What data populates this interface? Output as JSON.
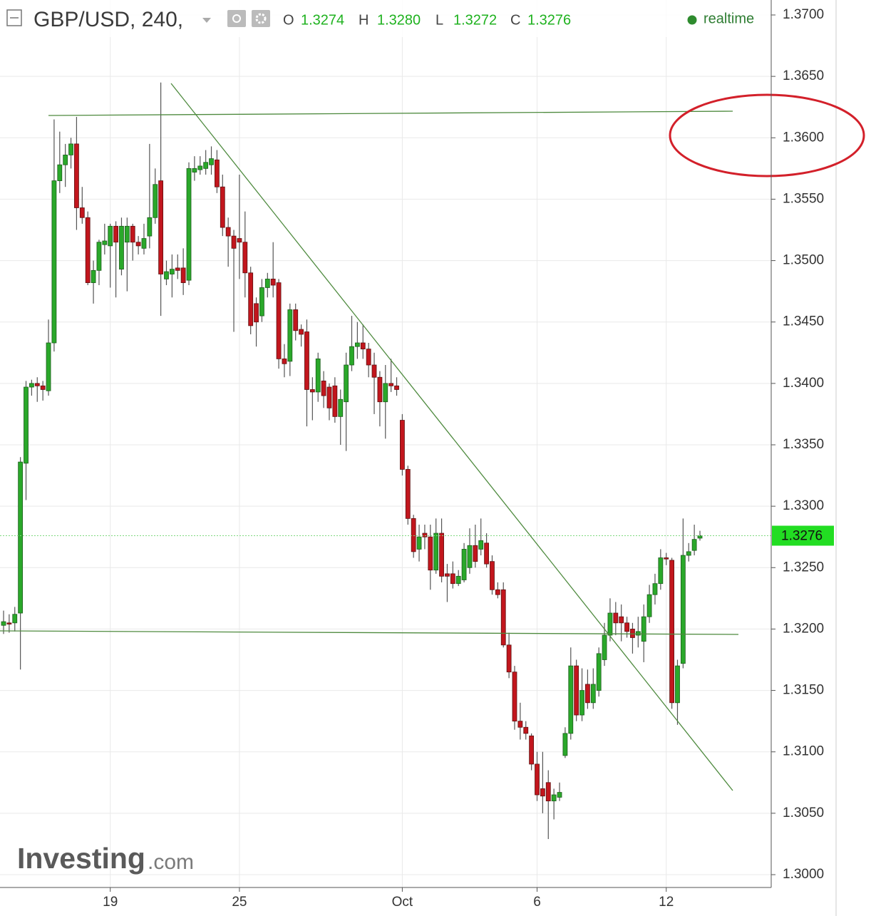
{
  "chart_data": {
    "type": "candlestick",
    "title": "GBP/USD, 240,",
    "ohlc": [
      {
        "label": "O",
        "value": "1.3274"
      },
      {
        "label": "H",
        "value": "1.3280"
      },
      {
        "label": "L",
        "value": "1.3272"
      },
      {
        "label": "C",
        "value": "1.3276"
      }
    ],
    "status": "realtime",
    "watermark": {
      "brand": "Investing",
      "suffix": ".com"
    },
    "up_color": "#2aa82a",
    "down_color": "#c2161d",
    "current_price": 1.3276,
    "ylim": [
      1.3,
      1.37
    ],
    "yticks": [
      {
        "value": 1.3,
        "label": "1.3000"
      },
      {
        "value": 1.305,
        "label": "1.3050"
      },
      {
        "value": 1.31,
        "label": "1.3100"
      },
      {
        "value": 1.315,
        "label": "1.3150"
      },
      {
        "value": 1.32,
        "label": "1.3200"
      },
      {
        "value": 1.325,
        "label": "1.3250"
      },
      {
        "value": 1.33,
        "label": "1.3300"
      },
      {
        "value": 1.335,
        "label": "1.3350"
      },
      {
        "value": 1.34,
        "label": "1.3400"
      },
      {
        "value": 1.345,
        "label": "1.3450"
      },
      {
        "value": 1.35,
        "label": "1.3500"
      },
      {
        "value": 1.355,
        "label": "1.3550"
      },
      {
        "value": 1.36,
        "label": "1.3600"
      },
      {
        "value": 1.365,
        "label": "1.3650"
      },
      {
        "value": 1.37,
        "label": "1.3700"
      }
    ],
    "grid": true,
    "categories": [
      null,
      null,
      null,
      null,
      null,
      null,
      null,
      null,
      null,
      null,
      null,
      null,
      null,
      null,
      null,
      null,
      null,
      null,
      null,
      "19",
      null,
      null,
      null,
      null,
      null,
      null,
      null,
      null,
      null,
      null,
      null,
      null,
      null,
      null,
      null,
      null,
      null,
      null,
      null,
      null,
      null,
      null,
      "25",
      null,
      null,
      null,
      null,
      null,
      null,
      null,
      null,
      null,
      null,
      null,
      null,
      null,
      null,
      null,
      null,
      null,
      null,
      null,
      null,
      null,
      null,
      null,
      null,
      null,
      null,
      null,
      null,
      "Oct",
      null,
      null,
      null,
      null,
      null,
      null,
      null,
      null,
      null,
      null,
      null,
      null,
      null,
      null,
      null,
      null,
      null,
      null,
      null,
      null,
      null,
      null,
      null,
      "6",
      null,
      null,
      null,
      null,
      null,
      null,
      null,
      null,
      null,
      null,
      null,
      null,
      null,
      null,
      null,
      null,
      null,
      null,
      null,
      null,
      null,
      null,
      "12",
      null,
      null,
      null,
      null,
      null,
      null
    ],
    "open": [
      1.3203,
      1.3205,
      1.3205,
      1.3213,
      1.3335,
      1.3397,
      1.34,
      1.3398,
      1.3394,
      1.3433,
      1.3565,
      1.3578,
      1.3586,
      1.3595,
      1.3543,
      1.3535,
      1.3482,
      1.3492,
      1.3513,
      1.3512,
      1.3528,
      1.3493,
      1.3515,
      1.3528,
      1.3515,
      1.351,
      1.352,
      1.3535,
      1.3565,
      1.3485,
      1.3489,
      1.3494,
      1.3494,
      1.3484,
      1.3572,
      1.3574,
      1.3575,
      1.3578,
      1.3582,
      1.356,
      1.3527,
      1.352,
      1.3518,
      1.3515,
      1.349,
      1.3465,
      1.3455,
      1.3478,
      1.3485,
      1.3482,
      1.342,
      1.3418,
      1.346,
      1.3444,
      1.3442,
      1.3395,
      1.3393,
      1.3402,
      1.3397,
      1.3398,
      1.3373,
      1.3385,
      1.3415,
      1.343,
      1.3433,
      1.3428,
      1.3415,
      1.3405,
      1.3385,
      1.34,
      1.3398,
      1.337,
      1.333,
      1.329,
      1.3265,
      1.3278,
      1.3275,
      1.3248,
      1.3278,
      1.3245,
      1.3245,
      1.3237,
      1.324,
      1.325,
      1.3268,
      1.3265,
      1.327,
      1.3255,
      1.3232,
      1.3232,
      1.3187,
      1.3165,
      1.3125,
      1.312,
      1.3113,
      1.309,
      1.307,
      1.3075,
      1.306,
      1.3063,
      1.3097,
      1.3115,
      1.317,
      1.313,
      1.3155,
      1.314,
      1.315,
      1.3175,
      1.3195,
      1.3213,
      1.321,
      1.3205,
      1.32,
      1.3195,
      1.319,
      1.321,
      1.3228,
      1.3237,
      1.3258,
      1.3256,
      1.314,
      1.3172,
      1.326,
      1.3264,
      1.3274
    ],
    "high": [
      1.3215,
      1.3212,
      1.3218,
      1.334,
      1.3402,
      1.3403,
      1.3405,
      1.3402,
      1.3452,
      1.3615,
      1.3605,
      1.3595,
      1.36,
      1.3617,
      1.356,
      1.354,
      1.35,
      1.3517,
      1.353,
      1.353,
      1.3532,
      1.3535,
      1.3535,
      1.353,
      1.352,
      1.353,
      1.3595,
      1.3575,
      1.3645,
      1.35,
      1.3505,
      1.3505,
      1.351,
      1.358,
      1.3585,
      1.3585,
      1.359,
      1.3593,
      1.359,
      1.357,
      1.3535,
      1.3525,
      1.357,
      1.354,
      1.3495,
      1.347,
      1.3485,
      1.349,
      1.3515,
      1.3485,
      1.3432,
      1.3465,
      1.3465,
      1.3448,
      1.3452,
      1.3405,
      1.3425,
      1.341,
      1.34,
      1.3405,
      1.3395,
      1.3425,
      1.3455,
      1.345,
      1.3448,
      1.3433,
      1.3425,
      1.341,
      1.3415,
      1.342,
      1.3405,
      1.3375,
      1.3333,
      1.3293,
      1.3285,
      1.3285,
      1.3285,
      1.329,
      1.329,
      1.3253,
      1.3255,
      1.3248,
      1.327,
      1.3282,
      1.3285,
      1.329,
      1.3278,
      1.326,
      1.3238,
      1.3238,
      1.3197,
      1.317,
      1.314,
      1.3125,
      1.3115,
      1.31,
      1.31,
      1.3085,
      1.307,
      1.3075,
      1.312,
      1.3185,
      1.3175,
      1.3168,
      1.3167,
      1.3168,
      1.3185,
      1.3205,
      1.3225,
      1.3222,
      1.322,
      1.321,
      1.3205,
      1.321,
      1.322,
      1.3236,
      1.3245,
      1.3265,
      1.3262,
      1.3258,
      1.3175,
      1.329,
      1.327,
      1.3285,
      1.328
    ],
    "low": [
      1.3196,
      1.3197,
      1.3198,
      1.3167,
      1.3305,
      1.339,
      1.3385,
      1.3386,
      1.339,
      1.3426,
      1.3555,
      1.356,
      1.3575,
      1.3525,
      1.353,
      1.348,
      1.3465,
      1.348,
      1.3505,
      1.3478,
      1.347,
      1.3488,
      1.3475,
      1.35,
      1.3505,
      1.3505,
      1.351,
      1.353,
      1.3455,
      1.348,
      1.347,
      1.3485,
      1.3472,
      1.348,
      1.3565,
      1.357,
      1.357,
      1.357,
      1.3555,
      1.352,
      1.3495,
      1.3442,
      1.3485,
      1.347,
      1.344,
      1.343,
      1.345,
      1.347,
      1.347,
      1.3412,
      1.3405,
      1.3406,
      1.3435,
      1.343,
      1.3365,
      1.337,
      1.3385,
      1.338,
      1.337,
      1.3368,
      1.335,
      1.3345,
      1.341,
      1.342,
      1.342,
      1.3405,
      1.3375,
      1.3365,
      1.3355,
      1.3393,
      1.339,
      1.3325,
      1.3285,
      1.3258,
      1.3255,
      1.3265,
      1.3232,
      1.3245,
      1.3238,
      1.3222,
      1.3233,
      1.3235,
      1.3238,
      1.3245,
      1.325,
      1.326,
      1.325,
      1.3228,
      1.3225,
      1.3185,
      1.316,
      1.3118,
      1.311,
      1.311,
      1.3085,
      1.306,
      1.305,
      1.3029,
      1.3045,
      1.306,
      1.3095,
      1.311,
      1.3125,
      1.3125,
      1.3135,
      1.3135,
      1.3145,
      1.317,
      1.319,
      1.3195,
      1.319,
      1.3193,
      1.318,
      1.3185,
      1.3173,
      1.3205,
      1.322,
      1.3232,
      1.3252,
      1.3135,
      1.3122,
      1.3168,
      1.3255,
      1.326,
      1.3272
    ],
    "close": [
      1.3206,
      1.3204,
      1.3212,
      1.3336,
      1.3397,
      1.34,
      1.3398,
      1.3395,
      1.3433,
      1.3565,
      1.3578,
      1.3586,
      1.3595,
      1.3543,
      1.3535,
      1.3482,
      1.3492,
      1.3515,
      1.3516,
      1.3528,
      1.3515,
      1.3528,
      1.3528,
      1.3515,
      1.3512,
      1.3518,
      1.3535,
      1.3562,
      1.3489,
      1.3491,
      1.3493,
      1.3492,
      1.3482,
      1.3575,
      1.3575,
      1.3577,
      1.358,
      1.3583,
      1.356,
      1.3527,
      1.352,
      1.351,
      1.3515,
      1.349,
      1.3447,
      1.345,
      1.3478,
      1.3485,
      1.348,
      1.342,
      1.3416,
      1.346,
      1.3443,
      1.344,
      1.3395,
      1.3393,
      1.342,
      1.339,
      1.338,
      1.3373,
      1.3387,
      1.3415,
      1.343,
      1.3433,
      1.3428,
      1.3415,
      1.3405,
      1.3385,
      1.34,
      1.3398,
      1.3395,
      1.333,
      1.329,
      1.3263,
      1.3275,
      1.3275,
      1.3248,
      1.3278,
      1.3243,
      1.3243,
      1.3237,
      1.3243,
      1.3265,
      1.3268,
      1.3255,
      1.3272,
      1.3253,
      1.3232,
      1.3228,
      1.3187,
      1.3165,
      1.3125,
      1.312,
      1.3115,
      1.309,
      1.3065,
      1.3064,
      1.306,
      1.3065,
      1.3067,
      1.3115,
      1.317,
      1.313,
      1.315,
      1.314,
      1.3155,
      1.318,
      1.3195,
      1.3213,
      1.3205,
      1.3205,
      1.3198,
      1.3193,
      1.3198,
      1.321,
      1.3228,
      1.3237,
      1.3258,
      1.3257,
      1.314,
      1.317,
      1.326,
      1.3263,
      1.3273,
      1.3276
    ]
  }
}
